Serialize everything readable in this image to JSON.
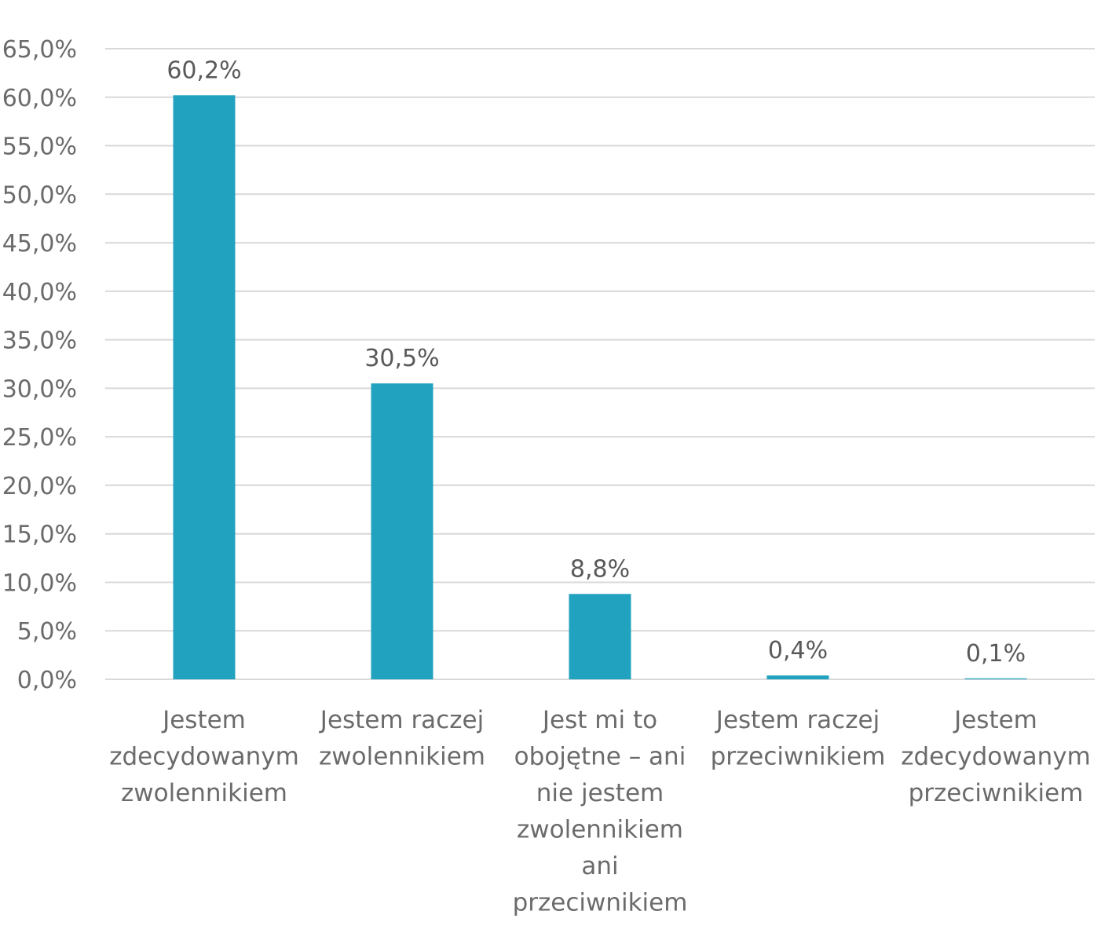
{
  "chart_data": {
    "type": "bar",
    "title": "",
    "xlabel": "",
    "ylabel": "",
    "ylim": [
      0,
      65
    ],
    "y_ticks": [
      "0,0%",
      "5,0%",
      "10,0%",
      "15,0%",
      "20,0%",
      "25,0%",
      "30,0%",
      "35,0%",
      "40,0%",
      "45,0%",
      "50,0%",
      "55,0%",
      "60,0%",
      "65,0%"
    ],
    "grid": true,
    "legend": "none",
    "bar_color": "#21a2bf",
    "categories": [
      [
        "Jestem",
        "zdecydowanym",
        "zwolennikiem"
      ],
      [
        "Jestem raczej",
        "zwolennikiem"
      ],
      [
        "Jest mi to",
        "obojętne – ani",
        "nie jestem",
        "zwolennikiem",
        "ani",
        "przeciwnikiem"
      ],
      [
        "Jestem raczej",
        "przeciwnikiem"
      ],
      [
        "Jestem",
        "zdecydowanym",
        "przeciwnikiem"
      ]
    ],
    "values": [
      60.2,
      30.5,
      8.8,
      0.4,
      0.1
    ],
    "data_labels": [
      "60,2%",
      "30,5%",
      "8,8%",
      "0,4%",
      "0,1%"
    ]
  }
}
